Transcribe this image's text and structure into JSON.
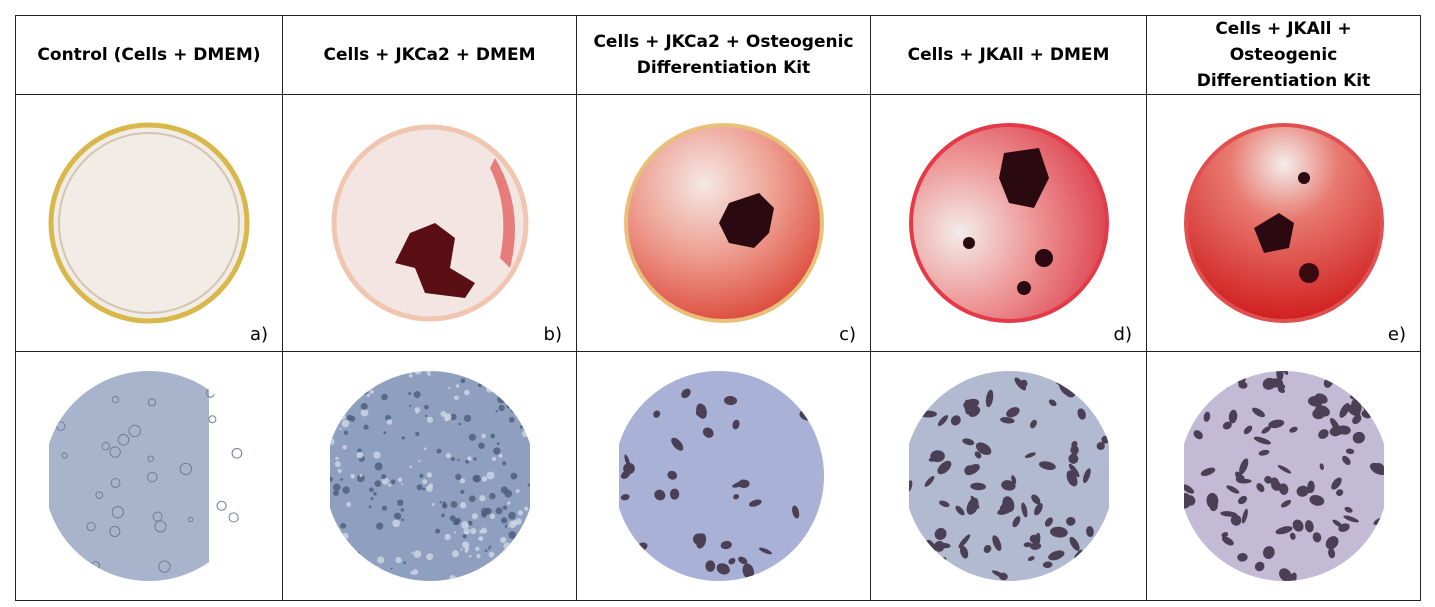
{
  "figure": {
    "columns": [
      {
        "header": "Control (Cells + DMEM)",
        "label": "a)"
      },
      {
        "header": "Cells + JKCa2 + DMEM",
        "label": "b)"
      },
      {
        "header": "Cells + JKCa2 + Osteogenic Differentiation Kit",
        "label": "c)"
      },
      {
        "header": "Cells + JKAll + DMEM",
        "label": "d)"
      },
      {
        "header": "Cells + JKAll + Osteogenic Differentiation Kit",
        "label": "e)"
      }
    ]
  }
}
